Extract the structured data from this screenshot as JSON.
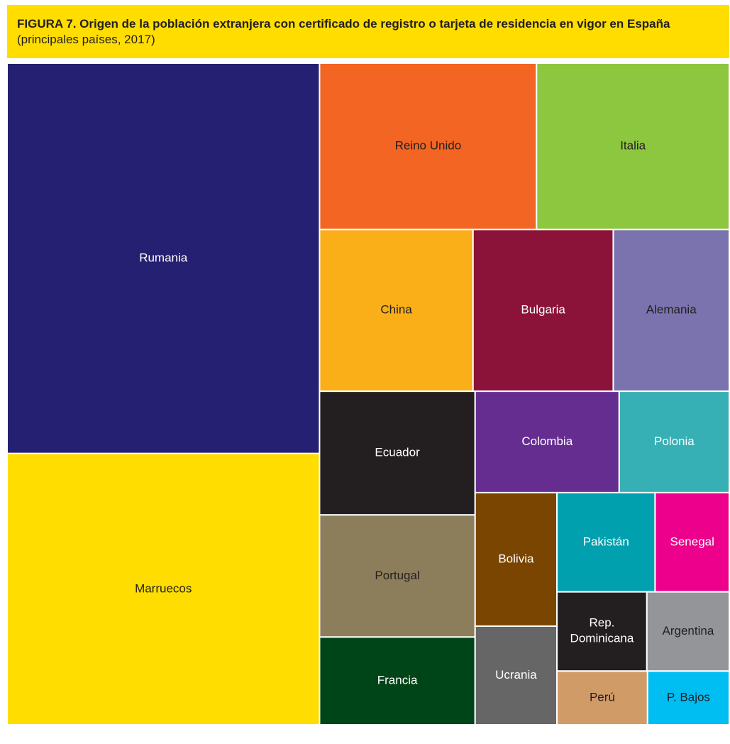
{
  "chart_data": {
    "type": "treemap",
    "title": "FIGURA 7. Origen de la población extranjera con certificado de registro o tarjeta de residencia en vigor en España",
    "subtitle": "(principales países, 2017)",
    "categories": [
      "Rumania",
      "Marruecos",
      "Reino Unido",
      "Italia",
      "China",
      "Bulgaria",
      "Alemania",
      "Ecuador",
      "Portugal",
      "Francia",
      "Colombia",
      "Polonia",
      "Bolivia",
      "Ucrania",
      "Pakistán",
      "Senegal",
      "Rep. Dominicana",
      "Argentina",
      "Perú",
      "P. Bajos"
    ],
    "values": [
      1027,
      714,
      304,
      270,
      209,
      191,
      158,
      162,
      160,
      115,
      123,
      94,
      92,
      68,
      82,
      62,
      60,
      55,
      41,
      37
    ],
    "colors": [
      "#262072",
      "#ffdd00",
      "#f26522",
      "#8dc63f",
      "#faae17",
      "#8b1239",
      "#7b73ae",
      "#231f20",
      "#8d7e5b",
      "#004517",
      "#662d91",
      "#37b0b5",
      "#7a4500",
      "#666666",
      "#00a0af",
      "#ec008c",
      "#231f20",
      "#939598",
      "#d09b67",
      "#00bdf2"
    ],
    "label_colors": [
      "#ffffff",
      "#231f20",
      "#231f20",
      "#231f20",
      "#231f20",
      "#ffffff",
      "#231f20",
      "#ffffff",
      "#231f20",
      "#ffffff",
      "#ffffff",
      "#ffffff",
      "#ffffff",
      "#ffffff",
      "#ffffff",
      "#ffffff",
      "#ffffff",
      "#231f20",
      "#231f20",
      "#231f20"
    ]
  }
}
